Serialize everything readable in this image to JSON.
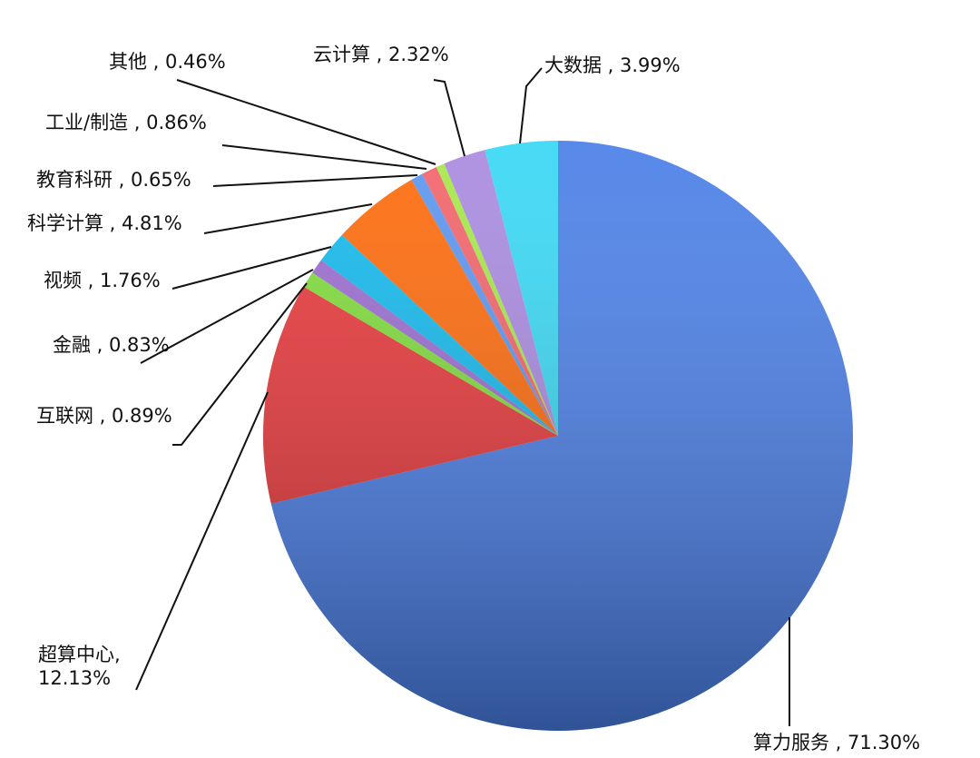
{
  "chart_data": {
    "type": "pie",
    "start_angle": "12 o'clock, clockwise",
    "slices": [
      {
        "label": "算力服务",
        "value": 71.3,
        "text": "算力服务 , 71.30%",
        "color": "#4a7fe8"
      },
      {
        "label": "超算中心",
        "value": 12.13,
        "text": "超算中心,\n12.13%",
        "color": "#e8373a"
      },
      {
        "label": "互联网",
        "value": 0.89,
        "text": "互联网 , 0.89%",
        "color": "#7fdc3a"
      },
      {
        "label": "金融",
        "value": 0.83,
        "text": "金融 , 0.83%",
        "color": "#9a6cd0"
      },
      {
        "label": "视频",
        "value": 1.76,
        "text": "视频 , 1.76%",
        "color": "#12b9ee"
      },
      {
        "label": "科学计算",
        "value": 4.81,
        "text": "科学计算 , 4.81%",
        "color": "#ff6a0a"
      },
      {
        "label": "教育科研",
        "value": 0.65,
        "text": "教育科研 , 0.65%",
        "color": "#5b95f0"
      },
      {
        "label": "工业/制造",
        "value": 0.86,
        "text": "工业/制造 , 0.86%",
        "color": "#f2646a"
      },
      {
        "label": "其他",
        "value": 0.46,
        "text": "其他 , 0.46%",
        "color": "#a6e84a"
      },
      {
        "label": "云计算",
        "value": 2.32,
        "text": "云计算 , 2.32%",
        "color": "#a98ae0"
      },
      {
        "label": "大数据",
        "value": 3.99,
        "text": "大数据 , 3.99%",
        "color": "#38d8f5"
      }
    ]
  }
}
